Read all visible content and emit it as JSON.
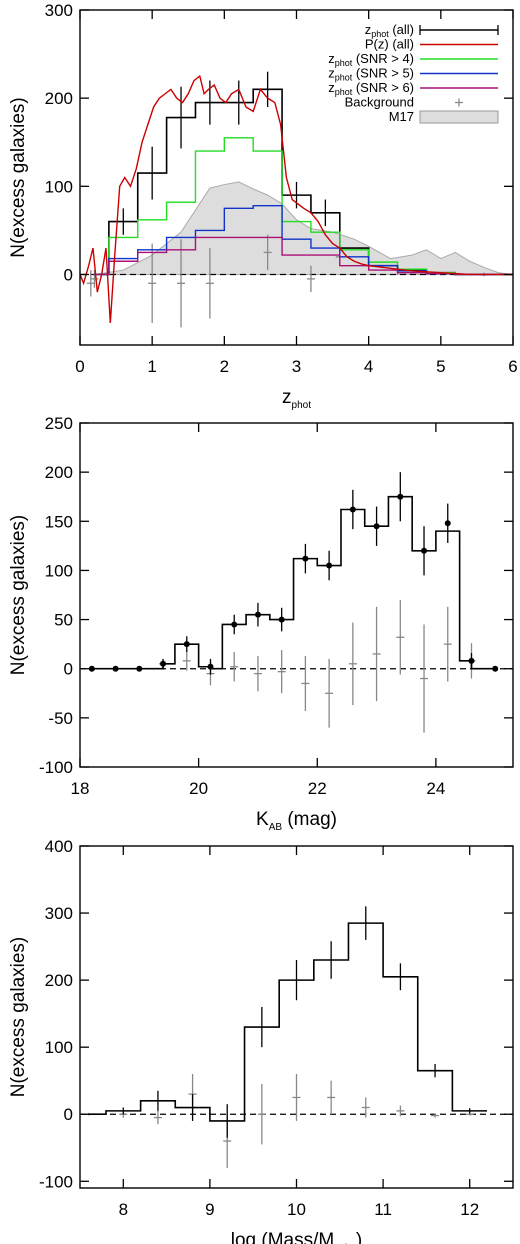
{
  "chart_data": [
    {
      "type": "line",
      "xlabel_main": "z",
      "xlabel_sub": "phot",
      "ylabel": "N(excess galaxies)",
      "xlim": [
        0,
        6
      ],
      "ylim": [
        -80,
        300
      ],
      "xticks": [
        0,
        1,
        2,
        3,
        4,
        5,
        6
      ],
      "yticks": [
        0,
        100,
        200,
        300
      ],
      "legend_position": "top-right",
      "legend": [
        {
          "main": "z",
          "sub": "phot",
          "rest": " (all)",
          "color": "#000000",
          "kind": "line-errbar"
        },
        {
          "main": "P(z) (all)",
          "sub": "",
          "rest": "",
          "color": "#cc0000",
          "kind": "line"
        },
        {
          "main": "z",
          "sub": "phot",
          "rest": " (SNR > 4)",
          "color": "#22dd22",
          "kind": "line"
        },
        {
          "main": "z",
          "sub": "phot",
          "rest": " (SNR > 5)",
          "color": "#1133cc",
          "kind": "line"
        },
        {
          "main": "z",
          "sub": "phot",
          "rest": " (SNR > 6)",
          "color": "#aa1177",
          "kind": "line"
        },
        {
          "main": "Background",
          "sub": "",
          "rest": "",
          "color": "#888888",
          "kind": "plus"
        },
        {
          "main": "M17",
          "sub": "",
          "rest": "",
          "color": "#dddddd",
          "kind": "box"
        }
      ],
      "bin_edges": [
        0.2,
        0.4,
        0.8,
        1.2,
        1.6,
        2.0,
        2.4,
        2.8,
        3.2,
        3.6,
        4.0,
        4.4,
        4.8,
        5.2,
        5.6,
        6.0
      ],
      "series": [
        {
          "name": "zphot (all)",
          "color": "#000000",
          "values": [
            0,
            60,
            115,
            178,
            195,
            195,
            210,
            90,
            70,
            30,
            10,
            5,
            2,
            0,
            0
          ],
          "errbar_x": [
            0.6,
            1.0,
            1.4,
            1.8,
            2.2,
            2.6,
            3.0,
            3.4
          ],
          "errbar_y": [
            60,
            115,
            178,
            195,
            195,
            210,
            90,
            70
          ],
          "errbar_err": [
            15,
            30,
            35,
            25,
            25,
            20,
            15,
            15
          ]
        },
        {
          "name": "zphot (SNR > 4)",
          "color": "#22dd22",
          "values": [
            0,
            42,
            62,
            82,
            140,
            155,
            140,
            60,
            48,
            28,
            14,
            6,
            2,
            0,
            0
          ]
        },
        {
          "name": "zphot (SNR > 5)",
          "color": "#1133cc",
          "values": [
            0,
            18,
            28,
            42,
            50,
            75,
            78,
            40,
            30,
            20,
            10,
            4,
            1,
            0,
            0
          ]
        },
        {
          "name": "zphot (SNR > 6)",
          "color": "#aa1177",
          "values": [
            0,
            15,
            25,
            28,
            42,
            42,
            42,
            22,
            22,
            10,
            5,
            2,
            1,
            0,
            0
          ]
        }
      ],
      "pz_curve": {
        "color": "#cc0000",
        "x": [
          0,
          0.05,
          0.12,
          0.18,
          0.24,
          0.3,
          0.36,
          0.42,
          0.48,
          0.55,
          0.62,
          0.7,
          0.78,
          0.86,
          0.94,
          1.02,
          1.1,
          1.18,
          1.26,
          1.34,
          1.42,
          1.5,
          1.58,
          1.66,
          1.72,
          1.78,
          1.86,
          1.94,
          2.02,
          2.1,
          2.2,
          2.3,
          2.4,
          2.5,
          2.6,
          2.7,
          2.78,
          2.86,
          2.94,
          3.02,
          3.1,
          3.2,
          3.3,
          3.4,
          3.5,
          3.6,
          3.7,
          3.8,
          3.9,
          4.0,
          4.2,
          4.4,
          4.6,
          4.8,
          5.0,
          5.2,
          5.4,
          5.6,
          5.8,
          6.0
        ],
        "y": [
          0,
          -10,
          10,
          30,
          -20,
          0,
          30,
          -55,
          20,
          100,
          110,
          100,
          120,
          150,
          170,
          190,
          200,
          205,
          210,
          200,
          195,
          205,
          220,
          225,
          205,
          210,
          215,
          200,
          195,
          205,
          210,
          190,
          185,
          210,
          200,
          195,
          170,
          110,
          85,
          80,
          75,
          70,
          60,
          45,
          35,
          30,
          20,
          15,
          12,
          10,
          8,
          6,
          4,
          3,
          2,
          1,
          0,
          0,
          0,
          0
        ]
      },
      "m17_curve": {
        "color": "#dddddd",
        "x": [
          0.2,
          0.6,
          1.0,
          1.4,
          1.8,
          2.0,
          2.2,
          2.4,
          2.6,
          2.8,
          3.0,
          3.2,
          3.5,
          3.8,
          4.0,
          4.3,
          4.6,
          4.8,
          5.0,
          5.2,
          5.4,
          5.6,
          5.8,
          6.0
        ],
        "y": [
          0,
          5,
          22,
          48,
          98,
          102,
          105,
          97,
          90,
          80,
          62,
          52,
          48,
          40,
          32,
          18,
          22,
          28,
          18,
          25,
          15,
          8,
          2,
          0
        ]
      },
      "background": {
        "color": "#888888",
        "x": [
          0.15,
          0.2,
          1.0,
          1.4,
          1.8,
          2.6,
          3.2,
          3.6,
          4.0,
          4.4,
          5.6
        ],
        "y": [
          -10,
          -5,
          -10,
          -10,
          -10,
          25,
          -5,
          20,
          10,
          5,
          0
        ],
        "err": [
          15,
          10,
          45,
          50,
          40,
          20,
          15,
          10,
          5,
          5,
          2
        ]
      }
    },
    {
      "type": "line",
      "xlabel_main": "K",
      "xlabel_sub": "AB",
      "xlabel_rest": " (mag)",
      "ylabel": "N(excess galaxies)",
      "xlim": [
        18,
        25.3
      ],
      "ylim": [
        -100,
        250
      ],
      "xticks": [
        18,
        20,
        22,
        24
      ],
      "yticks": [
        -100,
        -50,
        0,
        50,
        100,
        150,
        200,
        250
      ],
      "bin_edges": [
        18.2,
        18.6,
        19.0,
        19.4,
        19.6,
        20.0,
        20.2,
        20.4,
        20.8,
        21.2,
        21.6,
        22.0,
        22.4,
        22.8,
        23.2,
        23.6,
        24.0,
        24.4,
        24.6,
        25.0
      ],
      "series": [
        {
          "name": "",
          "color": "#000000",
          "values": [
            0,
            0,
            0,
            5,
            25,
            2,
            0,
            45,
            55,
            50,
            112,
            105,
            162,
            145,
            175,
            120,
            140,
            8,
            0
          ],
          "points_x": [
            18.2,
            18.6,
            19.0,
            19.4,
            19.8,
            20.2,
            20.6,
            21.0,
            21.4,
            21.8,
            22.2,
            22.6,
            23.0,
            23.4,
            23.8,
            24.2,
            24.6,
            25.0
          ],
          "points_y": [
            0,
            0,
            0,
            5,
            25,
            2,
            45,
            55,
            50,
            112,
            105,
            162,
            145,
            175,
            120,
            148,
            8,
            0
          ],
          "points_err": [
            1,
            1,
            2,
            5,
            8,
            8,
            10,
            12,
            12,
            15,
            15,
            20,
            20,
            25,
            25,
            20,
            8,
            2
          ]
        }
      ],
      "background": {
        "color": "#888888",
        "x": [
          19.4,
          19.8,
          20.2,
          20.6,
          21.0,
          21.4,
          21.8,
          22.2,
          22.6,
          23.0,
          23.4,
          23.8,
          24.2,
          24.6
        ],
        "y": [
          5,
          8,
          -5,
          2,
          -5,
          -3,
          -15,
          -25,
          5,
          15,
          32,
          -10,
          25,
          8
        ],
        "err": [
          4,
          10,
          12,
          15,
          18,
          22,
          28,
          35,
          42,
          48,
          38,
          55,
          38,
          18
        ]
      }
    },
    {
      "type": "line",
      "xlabel_main": "log (Mass/M",
      "xlabel_sub": "solar",
      "xlabel_rest": ")",
      "ylabel": "N(excess galaxies)",
      "xlim": [
        7.5,
        12.5
      ],
      "ylim": [
        -110,
        400
      ],
      "xticks": [
        8,
        9,
        10,
        11,
        12
      ],
      "yticks": [
        -100,
        0,
        100,
        200,
        300,
        400
      ],
      "bin_edges": [
        7.6,
        7.8,
        8.2,
        8.6,
        9.0,
        9.4,
        9.8,
        10.2,
        10.6,
        11.0,
        11.4,
        11.8,
        12.2
      ],
      "series": [
        {
          "name": "",
          "color": "#000000",
          "values": [
            0,
            5,
            20,
            10,
            -10,
            130,
            200,
            230,
            285,
            205,
            65,
            5
          ],
          "errbar_x": [
            8.0,
            8.4,
            8.8,
            9.2,
            9.6,
            10.0,
            10.4,
            10.8,
            11.2,
            11.6,
            12.0
          ],
          "errbar_y": [
            5,
            20,
            10,
            -10,
            130,
            200,
            230,
            285,
            205,
            65,
            5
          ],
          "errbar_err": [
            5,
            15,
            20,
            25,
            30,
            30,
            28,
            25,
            20,
            10,
            4
          ]
        }
      ],
      "background": {
        "color": "#888888",
        "x": [
          7.6,
          8.0,
          8.4,
          8.8,
          9.2,
          9.6,
          10.0,
          10.4,
          10.8,
          11.2,
          11.6,
          12.0
        ],
        "y": [
          0,
          0,
          -5,
          30,
          -40,
          0,
          25,
          25,
          10,
          5,
          -2,
          0
        ],
        "err": [
          2,
          5,
          10,
          30,
          40,
          45,
          35,
          25,
          15,
          8,
          3,
          2
        ]
      }
    }
  ]
}
